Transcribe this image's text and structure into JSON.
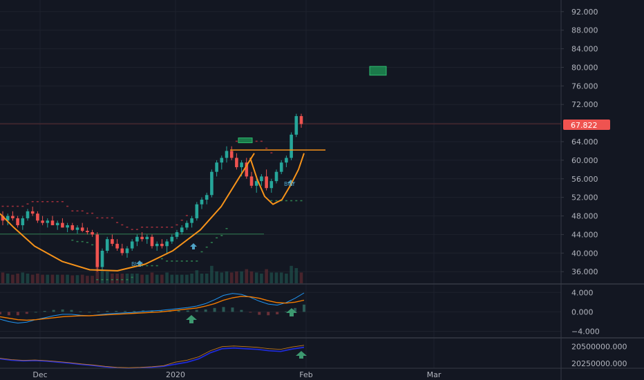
{
  "colors": {
    "background": "#131722",
    "grid": "#1e222d",
    "axis_text": "#b2b5be",
    "up": "#26a69a",
    "down": "#ef5350",
    "pattern": "#f7931a",
    "price_badge": "#ef5350",
    "macd_line": "#2196f3",
    "signal_line": "#f57c00",
    "obv_blue": "#1f2bd6",
    "obv_orange": "#f7931a",
    "arrow": "#3d9970",
    "target_box": "#1b7a4a"
  },
  "current_price_label": "67.822",
  "buy_label": "BUY",
  "buy_label_2": "BUY",
  "price_ticks": [
    "92.000",
    "88.000",
    "84.000",
    "80.000",
    "76.000",
    "72.000",
    "64.000",
    "60.000",
    "56.000",
    "52.000",
    "48.000",
    "44.000",
    "40.000",
    "36.000"
  ],
  "macd_ticks": [
    "4.000",
    "0.000",
    "−4.000"
  ],
  "obv_ticks": [
    "20500000.000",
    "20250000.000"
  ],
  "x_ticks": [
    "Dec",
    "2020",
    "Feb",
    "Mar"
  ],
  "chart_data": {
    "type": "candlestick",
    "price_axis": {
      "ylim": [
        33.5,
        94.5
      ],
      "ticks": [
        36,
        40,
        44,
        48,
        52,
        56,
        60,
        64,
        68,
        72,
        76,
        80,
        84,
        88,
        92
      ]
    },
    "macd_axis": {
      "ylim": [
        -5.2,
        5.6
      ],
      "ticks": [
        4,
        0,
        -4
      ]
    },
    "obv_axis": {
      "ylim": [
        20180000,
        20620000
      ],
      "ticks": [
        20500000,
        20250000
      ]
    },
    "x_axis": {
      "ticks": [
        "Dec",
        "2020",
        "Feb",
        "Mar"
      ]
    },
    "last_price": 67.822,
    "pattern": "cup and handle",
    "resistance_level": 62.2,
    "target_zone": [
      79.2,
      80.2
    ],
    "candles": [
      [
        48,
        49,
        46,
        47
      ],
      [
        47,
        48.5,
        46,
        48
      ],
      [
        48,
        49,
        47,
        47.5
      ],
      [
        47.5,
        48,
        45.5,
        46
      ],
      [
        46,
        48,
        45,
        47.5
      ],
      [
        47.5,
        49.5,
        47,
        49
      ],
      [
        49,
        50,
        48,
        48.5
      ],
      [
        48.5,
        49,
        46.5,
        47
      ],
      [
        47,
        48,
        46,
        46.5
      ],
      [
        46.5,
        47.5,
        45.5,
        47
      ],
      [
        47,
        48,
        46,
        46
      ],
      [
        46,
        47,
        45,
        46.5
      ],
      [
        46.5,
        47.5,
        45.5,
        45.5
      ],
      [
        45.5,
        46.5,
        44.5,
        46
      ],
      [
        46,
        46.5,
        44.8,
        45
      ],
      [
        45,
        46,
        44.2,
        45.5
      ],
      [
        45.5,
        46.5,
        44.5,
        44.8
      ],
      [
        44.8,
        45.5,
        44,
        44.5
      ],
      [
        44.5,
        45,
        43.5,
        44
      ],
      [
        44,
        44.5,
        36,
        37
      ],
      [
        37,
        41,
        36.5,
        40.5
      ],
      [
        40.5,
        43.5,
        40,
        43
      ],
      [
        43,
        44,
        41.5,
        42
      ],
      [
        42,
        43,
        40.5,
        41
      ],
      [
        41,
        42,
        39.5,
        40
      ],
      [
        40,
        41.5,
        39,
        41
      ],
      [
        41,
        43,
        40.5,
        42.5
      ],
      [
        42.5,
        44,
        41.5,
        43.5
      ],
      [
        43.5,
        44.5,
        42.5,
        43
      ],
      [
        43,
        44,
        42,
        43.5
      ],
      [
        43.5,
        44,
        41,
        41.5
      ],
      [
        41.5,
        42.5,
        40.5,
        42
      ],
      [
        42,
        43,
        41,
        41.5
      ],
      [
        41.5,
        43,
        40,
        42.5
      ],
      [
        42.5,
        44,
        42,
        43.5
      ],
      [
        43.5,
        45,
        43,
        44.5
      ],
      [
        44.5,
        46,
        44,
        45.5
      ],
      [
        45.5,
        47,
        45,
        46.5
      ],
      [
        46.5,
        48,
        45.5,
        47.5
      ],
      [
        47.5,
        51,
        47,
        50.5
      ],
      [
        50.5,
        52,
        49.5,
        51.5
      ],
      [
        51.5,
        53,
        50.5,
        52.5
      ],
      [
        52.5,
        58,
        52,
        57.5
      ],
      [
        57.5,
        60,
        56.5,
        59.5
      ],
      [
        59.5,
        61,
        58,
        60.5
      ],
      [
        60.5,
        63,
        59.5,
        62
      ],
      [
        62,
        63,
        60,
        60.5
      ],
      [
        60.5,
        61.5,
        58,
        58.5
      ],
      [
        58.5,
        60,
        56.5,
        59.5
      ],
      [
        59.5,
        60.5,
        56,
        56.5
      ],
      [
        56.5,
        57.5,
        54,
        54.5
      ],
      [
        54.5,
        56,
        53,
        55.5
      ],
      [
        55.5,
        57,
        54.5,
        56.5
      ],
      [
        56.5,
        58,
        53.5,
        54
      ],
      [
        54,
        56,
        53,
        55.5
      ],
      [
        55.5,
        58,
        55,
        57.5
      ],
      [
        57.5,
        60,
        57,
        59.5
      ],
      [
        59.5,
        61,
        58.5,
        60.5
      ],
      [
        60.5,
        66,
        60,
        65.5
      ],
      [
        65.5,
        70,
        65,
        69.5
      ],
      [
        69.5,
        70,
        67,
        67.8
      ]
    ],
    "macd_series": [
      {
        "name": "MACD",
        "values": [
          -1.5,
          -2,
          -2.3,
          -2.1,
          -1.6,
          -1.2,
          -0.8,
          -0.5,
          -0.5,
          -0.7,
          -0.8,
          -0.6,
          -0.4,
          -0.3,
          -0.2,
          -0.1,
          0.1,
          0.2,
          0.3,
          0.5,
          0.7,
          0.9,
          1.2,
          1.7,
          2.5,
          3.4,
          3.8,
          3.6,
          3,
          2.2,
          1.6,
          1.4,
          1.9,
          2.8,
          3.9
        ]
      },
      {
        "name": "Signal",
        "values": [
          -1,
          -1.3,
          -1.6,
          -1.7,
          -1.6,
          -1.4,
          -1.2,
          -1,
          -0.9,
          -0.8,
          -0.8,
          -0.7,
          -0.6,
          -0.5,
          -0.4,
          -0.3,
          -0.2,
          -0.1,
          0,
          0.2,
          0.4,
          0.6,
          0.8,
          1.2,
          1.7,
          2.4,
          2.9,
          3.2,
          3.1,
          2.8,
          2.3,
          1.9,
          1.8,
          2,
          2.4
        ]
      }
    ],
    "obv_series": [
      {
        "name": "OBV",
        "values": [
          20320000,
          20300000,
          20290000,
          20295000,
          20285000,
          20270000,
          20255000,
          20235000,
          20220000,
          20200000,
          20185000,
          20180000,
          20185000,
          20195000,
          20210000,
          20240000,
          20270000,
          20320000,
          20410000,
          20470000,
          20480000,
          20470000,
          20460000,
          20440000,
          20430000,
          20465000,
          20490000
        ]
      }
    ]
  }
}
